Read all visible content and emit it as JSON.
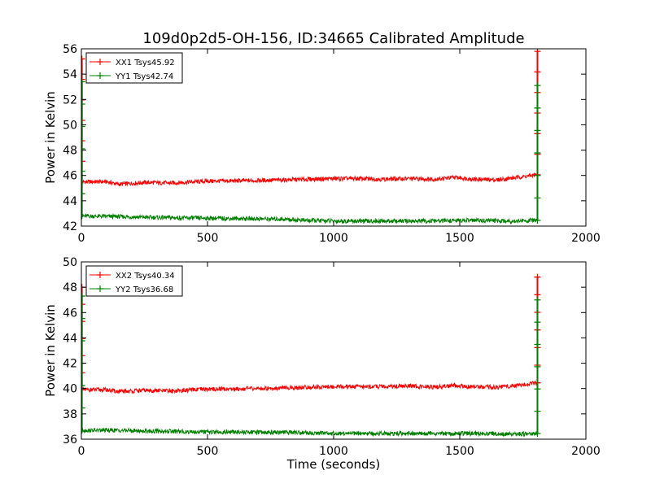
{
  "title": "109d0p2d5-OH-156, ID:34665 Calibrated Amplitude",
  "chart_data": [
    {
      "type": "line",
      "ylabel": "Power in Kelvin",
      "xlabel": "",
      "xlim": [
        0,
        2000
      ],
      "ylim": [
        42,
        56
      ],
      "xticks": [
        "0",
        "500",
        "1000",
        "1500",
        "2000"
      ],
      "yticks": [
        "42",
        "44",
        "46",
        "48",
        "50",
        "52",
        "54",
        "56"
      ],
      "legend_position": "top-left",
      "grid": false,
      "series": [
        {
          "name": "XX1 Tsys45.92",
          "color": "#ff0000",
          "points": [
            [
              0,
              45.5
            ],
            [
              100,
              45.5
            ],
            [
              150,
              45.3
            ],
            [
              250,
              45.45
            ],
            [
              350,
              45.4
            ],
            [
              500,
              45.55
            ],
            [
              700,
              45.6
            ],
            [
              900,
              45.7
            ],
            [
              1000,
              45.75
            ],
            [
              1100,
              45.75
            ],
            [
              1200,
              45.7
            ],
            [
              1300,
              45.75
            ],
            [
              1400,
              45.7
            ],
            [
              1480,
              45.85
            ],
            [
              1560,
              45.7
            ],
            [
              1650,
              45.65
            ],
            [
              1750,
              45.9
            ],
            [
              1805,
              46.05
            ]
          ],
          "spikes": [
            [
              2,
              55.2
            ],
            [
              1808,
              55.8
            ]
          ]
        },
        {
          "name": "YY1 Tsys42.74",
          "color": "#008000",
          "points": [
            [
              0,
              42.8
            ],
            [
              150,
              42.75
            ],
            [
              250,
              42.7
            ],
            [
              400,
              42.65
            ],
            [
              600,
              42.6
            ],
            [
              800,
              42.55
            ],
            [
              900,
              42.45
            ],
            [
              1000,
              42.4
            ],
            [
              1200,
              42.4
            ],
            [
              1400,
              42.4
            ],
            [
              1500,
              42.45
            ],
            [
              1600,
              42.45
            ],
            [
              1700,
              42.4
            ],
            [
              1805,
              42.45
            ]
          ],
          "spikes": [
            [
              2,
              53.4
            ],
            [
              1808,
              53.1
            ]
          ]
        }
      ]
    },
    {
      "type": "line",
      "ylabel": "Power in Kelvin",
      "xlabel": "Time (seconds)",
      "xlim": [
        0,
        2000
      ],
      "ylim": [
        36,
        50
      ],
      "xticks": [
        "0",
        "500",
        "1000",
        "1500",
        "2000"
      ],
      "yticks": [
        "36",
        "38",
        "40",
        "42",
        "44",
        "46",
        "48",
        "50"
      ],
      "legend_position": "top-left",
      "grid": false,
      "series": [
        {
          "name": "XX2 Tsys40.34",
          "color": "#ff0000",
          "points": [
            [
              0,
              39.9
            ],
            [
              100,
              39.9
            ],
            [
              150,
              39.75
            ],
            [
              250,
              39.85
            ],
            [
              350,
              39.8
            ],
            [
              500,
              39.95
            ],
            [
              700,
              40.0
            ],
            [
              900,
              40.1
            ],
            [
              1000,
              40.15
            ],
            [
              1100,
              40.15
            ],
            [
              1200,
              40.15
            ],
            [
              1300,
              40.2
            ],
            [
              1400,
              40.1
            ],
            [
              1480,
              40.25
            ],
            [
              1560,
              40.1
            ],
            [
              1650,
              40.1
            ],
            [
              1750,
              40.3
            ],
            [
              1805,
              40.45
            ]
          ],
          "spikes": [
            [
              2,
              48.0
            ],
            [
              1808,
              48.8
            ]
          ]
        },
        {
          "name": "YY2 Tsys36.68",
          "color": "#008000",
          "points": [
            [
              0,
              36.7
            ],
            [
              150,
              36.7
            ],
            [
              250,
              36.65
            ],
            [
              400,
              36.6
            ],
            [
              600,
              36.55
            ],
            [
              800,
              36.55
            ],
            [
              900,
              36.5
            ],
            [
              1000,
              36.45
            ],
            [
              1200,
              36.45
            ],
            [
              1400,
              36.45
            ],
            [
              1500,
              36.45
            ],
            [
              1600,
              36.45
            ],
            [
              1700,
              36.4
            ],
            [
              1805,
              36.45
            ]
          ],
          "spikes": [
            [
              2,
              47.3
            ],
            [
              1808,
              47.0
            ]
          ]
        }
      ]
    }
  ]
}
